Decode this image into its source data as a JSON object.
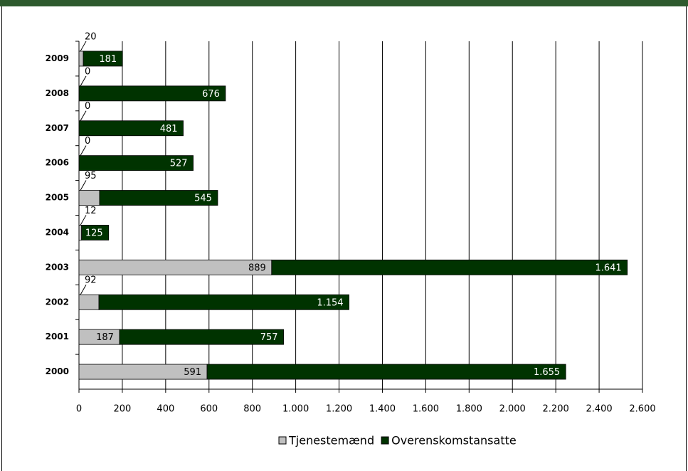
{
  "chart_data": {
    "type": "stacked-bar-horizontal",
    "categories": [
      "2009",
      "2008",
      "2007",
      "2006",
      "2005",
      "2004",
      "2003",
      "2002",
      "2001",
      "2000"
    ],
    "series": [
      {
        "name": "Tjenestemænd",
        "color": "#c0c0c0",
        "values": [
          20,
          0,
          0,
          0,
          95,
          12,
          889,
          92,
          187,
          591
        ],
        "value_labels": [
          "20",
          "0",
          "0",
          "0",
          "95",
          "12",
          "889",
          "92",
          "187",
          "591"
        ]
      },
      {
        "name": "Overenskomstansatte",
        "color": "#003300",
        "values": [
          181,
          676,
          481,
          527,
          545,
          125,
          1641,
          1154,
          757,
          1655
        ],
        "value_labels": [
          "181",
          "676",
          "481",
          "527",
          "545",
          "125",
          "1.641",
          "1.154",
          "757",
          "1.655"
        ]
      }
    ],
    "xlim": [
      0,
      2600
    ],
    "xticks": [
      0,
      200,
      400,
      600,
      800,
      {
        "value": 1000,
        "label": "1.000"
      },
      {
        "value": 1200,
        "label": "1.200"
      },
      {
        "value": 1400,
        "label": "1.400"
      },
      {
        "value": 1600,
        "label": "1.600"
      },
      {
        "value": 1800,
        "label": "1.800"
      },
      {
        "value": 2000,
        "label": "2.000"
      },
      {
        "value": 2200,
        "label": "2.200"
      },
      {
        "value": 2400,
        "label": "2.400"
      },
      {
        "value": 2600,
        "label": "2.600"
      }
    ],
    "grid": true,
    "legend": "bottom"
  }
}
